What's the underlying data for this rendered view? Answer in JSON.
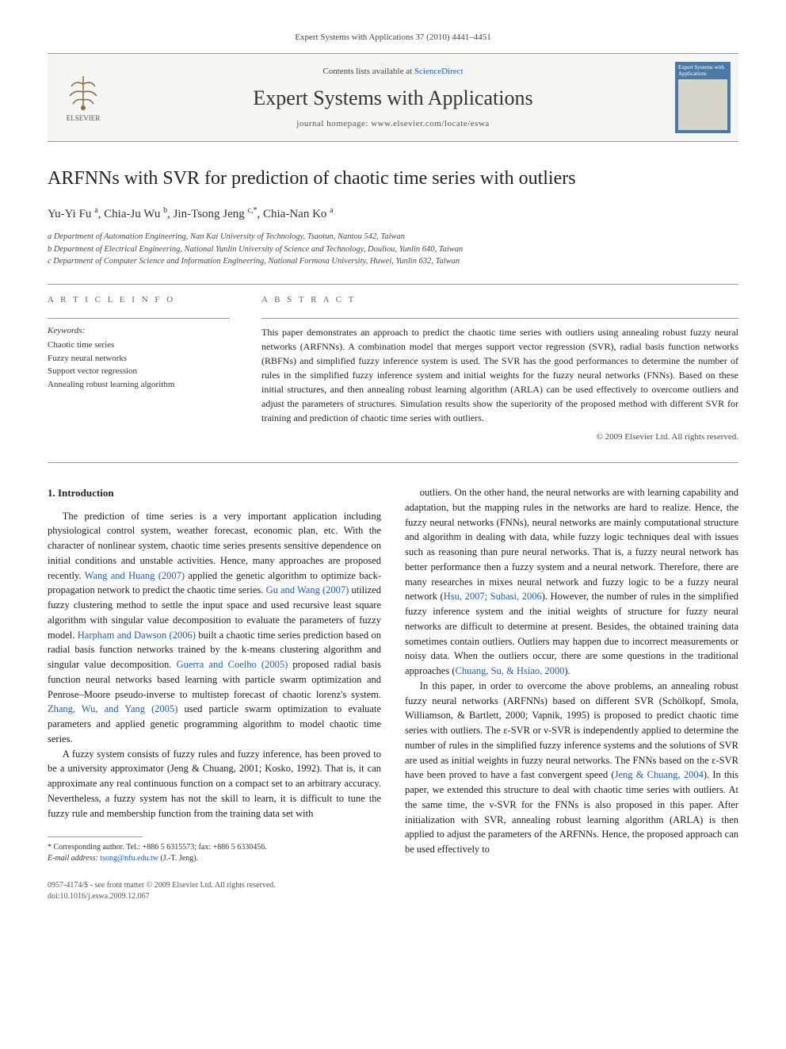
{
  "header": {
    "citation": "Expert Systems with Applications 37 (2010) 4441–4451"
  },
  "topbar": {
    "elsevier_label": "ELSEVIER",
    "contents_prefix": "Contents lists available at ",
    "contents_link": "ScienceDirect",
    "journal_title": "Expert Systems with Applications",
    "homepage_label": "journal homepage: www.elsevier.com/locate/eswa",
    "cover_title": "Expert Systems with Applications"
  },
  "article": {
    "title": "ARFNNs with SVR for prediction of chaotic time series with outliers",
    "authors_html": "Yu-Yi Fu <sup>a</sup>, Chia-Ju Wu <sup>b</sup>, Jin-Tsong Jeng <sup>c,*</sup>, Chia-Nan Ko <sup>a</sup>",
    "affiliations": [
      "a Department of Automation Engineering, Nan Kai University of Technology, Tsaotun, Nantou 542, Taiwan",
      "b Department of Electrical Engineering, National Yunlin University of Science and Technology, Douliou, Yunlin 640, Taiwan",
      "c Department of Computer Science and Information Engineering, National Formosa University, Huwei, Yunlin 632, Taiwan"
    ]
  },
  "info": {
    "heading": "A R T I C L E   I N F O",
    "keywords_label": "Keywords:",
    "keywords": [
      "Chaotic time series",
      "Fuzzy neural networks",
      "Support vector regression",
      "Annealing robust learning algorithm"
    ]
  },
  "abstract": {
    "heading": "A B S T R A C T",
    "text": "This paper demonstrates an approach to predict the chaotic time series with outliers using annealing robust fuzzy neural networks (ARFNNs). A combination model that merges support vector regression (SVR), radial basis function networks (RBFNs) and simplified fuzzy inference system is used. The SVR has the good performances to determine the number of rules in the simplified fuzzy inference system and initial weights for the fuzzy neural networks (FNNs). Based on these initial structures, and then annealing robust learning algorithm (ARLA) can be used effectively to overcome outliers and adjust the parameters of structures. Simulation results show the superiority of the proposed method with different SVR for training and prediction of chaotic time series with outliers.",
    "copyright": "© 2009 Elsevier Ltd. All rights reserved."
  },
  "body": {
    "section1_heading": "1. Introduction",
    "para1_a": "The prediction of time series is a very important application including physiological control system, weather forecast, economic plan, etc. With the character of nonlinear system, chaotic time series presents sensitive dependence on initial conditions and unstable activities. Hence, many approaches are proposed recently. ",
    "ref1": "Wang and Huang (2007)",
    "para1_b": " applied the genetic algorithm to optimize back-propagation network to predict the chaotic time series. ",
    "ref2": "Gu and Wang (2007)",
    "para1_c": " utilized fuzzy clustering method to settle the input space and used recursive least square algorithm with singular value decomposition to evaluate the parameters of fuzzy model. ",
    "ref3": "Harpham and Dawson (2006)",
    "para1_d": " built a chaotic time series prediction based on radial basis function networks trained by the k-means clustering algorithm and singular value decomposition. ",
    "ref4": "Guerra and Coelho (2005)",
    "para1_e": " proposed radial basis function neural networks based learning with particle swarm optimization and Penrose–Moore pseudo-inverse to multistep forecast of chaotic lorenz's system. ",
    "ref5": "Zhang, Wu, and Yang (2005)",
    "para1_f": " used particle swarm optimization to evaluate parameters and applied genetic programming algorithm to model chaotic time series.",
    "para2": "A fuzzy system consists of fuzzy rules and fuzzy inference, has been proved to be a university approximator (Jeng & Chuang, 2001; Kosko, 1992). That is, it can approximate any real continuous function on a compact set to an arbitrary accuracy. Nevertheless, a fuzzy system has not the skill to learn, it is difficult to tune the fuzzy rule and membership function from the training data set with",
    "para3_a": "outliers. On the other hand, the neural networks are with learning capability and adaptation, but the mapping rules in the networks are hard to realize. Hence, the fuzzy neural networks (FNNs), neural networks are mainly computational structure and algorithm in dealing with data, while fuzzy logic techniques deal with issues such as reasoning than pure neural networks. That is, a fuzzy neural network has better performance then a fuzzy system and a neural network. Therefore, there are many researches in mixes neural network and fuzzy logic to be a fuzzy neural network (",
    "ref6": "Hsu, 2007; Subasi, 2006",
    "para3_b": "). However, the number of rules in the simplified fuzzy inference system and the initial weights of structure for fuzzy neural networks are difficult to determine at present. Besides, the obtained training data sometimes contain outliers. Outliers may happen due to incorrect measurements or noisy data. When the outliers occur, there are some questions in the traditional approaches (",
    "ref7": "Chuang, Su, & Hsiao, 2000",
    "para3_c": ").",
    "para4_a": "In this paper, in order to overcome the above problems, an annealing robust fuzzy neural networks (ARFNNs) based on different SVR (Schölkopf, Smola, Williamson, & Bartlett, 2000; Vapnik, 1995) is proposed to predict chaotic time series with outliers. The ε-SVR or ν-SVR is independently applied to determine the number of rules in the simplified fuzzy inference systems and the solutions of SVR are used as initial weights in fuzzy neural networks. The FNNs based on the ε-SVR have been proved to have a fast convergent speed (",
    "ref8": "Jeng & Chuang, 2004",
    "para4_b": "). In this paper, we extended this structure to deal with chaotic time series with outliers. At the same time, the ν-SVR for the FNNs is also proposed in this paper. After initialization with SVR, annealing robust learning algorithm (ARLA) is then applied to adjust the parameters of the ARFNNs. Hence, the proposed approach can be used effectively to"
  },
  "footnote": {
    "corresponding": "* Corresponding author. Tel.: +886 5 6315573; fax: +886 5 6330456.",
    "email_label": "E-mail address: ",
    "email": "tsong@nfu.edu.tw",
    "email_suffix": " (J.-T. Jeng)."
  },
  "footer": {
    "issn": "0957-4174/$ - see front matter © 2009 Elsevier Ltd. All rights reserved.",
    "doi": "doi:10.1016/j.eswa.2009.12.067"
  }
}
